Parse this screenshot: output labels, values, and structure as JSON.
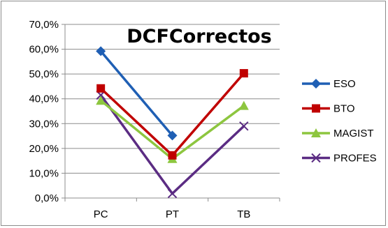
{
  "chart_data": {
    "type": "line",
    "title": "DCFCorrectos",
    "xlabel": "",
    "ylabel": "",
    "categories": [
      "PC",
      "PT",
      "TB"
    ],
    "ylim": [
      0,
      70
    ],
    "yticks": [
      0,
      10,
      20,
      30,
      40,
      50,
      60,
      70
    ],
    "ytick_labels": [
      "0,0%",
      "10,0%",
      "20,0%",
      "30,0%",
      "40,0%",
      "50,0%",
      "60,0%",
      "70,0%"
    ],
    "grid": true,
    "legend_position": "right",
    "series": [
      {
        "name": "ESO",
        "values": [
          59.2,
          25.2,
          null
        ],
        "color": "#1f5fb4",
        "marker": "diamond"
      },
      {
        "name": "BTO",
        "values": [
          44.2,
          17.2,
          50.3
        ],
        "color": "#c00000",
        "marker": "square"
      },
      {
        "name": "MAGIST",
        "values": [
          39.3,
          15.8,
          37.2
        ],
        "color": "#8dc63f",
        "marker": "triangle"
      },
      {
        "name": "PROFES",
        "values": [
          41.5,
          1.8,
          29.0
        ],
        "color": "#5b2c83",
        "marker": "x"
      }
    ]
  }
}
